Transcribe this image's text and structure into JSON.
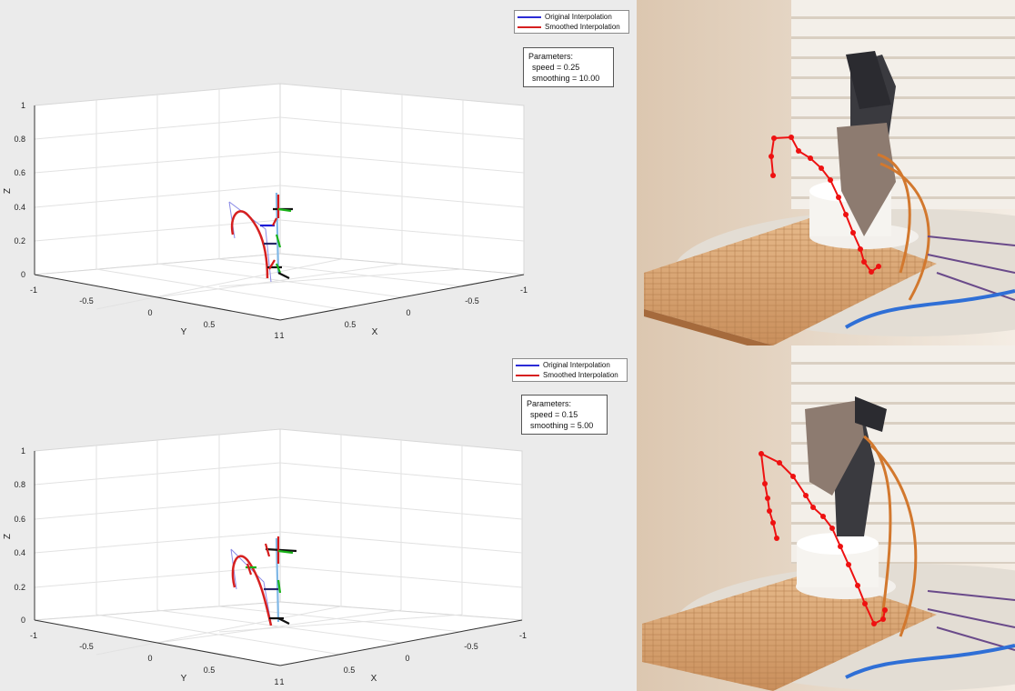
{
  "panels": [
    {
      "legend": {
        "items": [
          {
            "label": "Original Interpolation",
            "color": "#2b2bd6"
          },
          {
            "label": "Smoothed Interpolation",
            "color": "#d62020"
          }
        ]
      },
      "parameters": {
        "title": "Parameters:",
        "speed": "speed = 0.25",
        "smoothing": "smoothing = 10.00"
      },
      "z_ticks": [
        "1",
        "0.8",
        "0.6",
        "0.4",
        "0.2",
        "0"
      ],
      "y_ticks": [
        "-1",
        "-0.5",
        "0",
        "0.5",
        "1"
      ],
      "x_ticks": [
        "1",
        "0.5",
        "0",
        "-0.5",
        "-1"
      ],
      "axis_labels": {
        "x": "X",
        "y": "Y",
        "z": "Z"
      }
    },
    {
      "legend": {
        "items": [
          {
            "label": "Original Interpolation",
            "color": "#2b2bd6"
          },
          {
            "label": "Smoothed Interpolation",
            "color": "#d62020"
          }
        ]
      },
      "parameters": {
        "title": "Parameters:",
        "speed": "speed = 0.15",
        "smoothing": "smoothing = 5.00"
      },
      "z_ticks": [
        "1",
        "0.8",
        "0.6",
        "0.4",
        "0.2",
        "0"
      ],
      "y_ticks": [
        "-1",
        "-0.5",
        "0",
        "0.5",
        "1"
      ],
      "x_ticks": [
        "1",
        "0.5",
        "0",
        "-0.5",
        "-1"
      ],
      "axis_labels": {
        "x": "X",
        "y": "Y",
        "z": "Z"
      }
    }
  ],
  "colors": {
    "original_interpolation": "#2b2bd6",
    "smoothed_interpolation": "#d62020",
    "trajectory_overlay": "#ee1111"
  }
}
